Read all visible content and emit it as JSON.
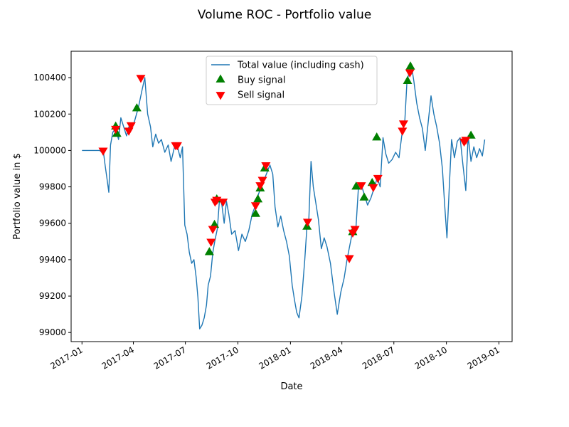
{
  "chart_data": {
    "type": "line",
    "title": "Volume ROC - Portfolio value",
    "xlabel": "Date",
    "ylabel": "Portfolio value in $",
    "xlim": [
      "2016-12-13",
      "2019-01-24"
    ],
    "ylim": [
      98950,
      100545
    ],
    "x_ticks": [
      "2017-01",
      "2017-04",
      "2017-07",
      "2017-10",
      "2018-01",
      "2018-04",
      "2018-07",
      "2018-10",
      "2019-01"
    ],
    "y_ticks": [
      99000,
      99200,
      99400,
      99600,
      99800,
      100000,
      100200,
      100400
    ],
    "grid": false,
    "legend_position": "top-center",
    "series": [
      {
        "name": "Total value (including cash)",
        "kind": "line",
        "color": "#1f77b4",
        "points": [
          [
            "2017-01-01",
            100000
          ],
          [
            "2017-02-01",
            100000
          ],
          [
            "2017-02-08",
            99980
          ],
          [
            "2017-02-10",
            99930
          ],
          [
            "2017-02-14",
            99840
          ],
          [
            "2017-02-17",
            99770
          ],
          [
            "2017-02-20",
            100030
          ],
          [
            "2017-02-24",
            100100
          ],
          [
            "2017-03-01",
            100120
          ],
          [
            "2017-03-06",
            100060
          ],
          [
            "2017-03-10",
            100180
          ],
          [
            "2017-03-16",
            100120
          ],
          [
            "2017-03-20",
            100080
          ],
          [
            "2017-03-24",
            100130
          ],
          [
            "2017-03-28",
            100110
          ],
          [
            "2017-04-03",
            100160
          ],
          [
            "2017-04-10",
            100240
          ],
          [
            "2017-04-16",
            100330
          ],
          [
            "2017-04-21",
            100400
          ],
          [
            "2017-04-26",
            100200
          ],
          [
            "2017-05-01",
            100130
          ],
          [
            "2017-05-05",
            100020
          ],
          [
            "2017-05-10",
            100090
          ],
          [
            "2017-05-15",
            100040
          ],
          [
            "2017-05-20",
            100060
          ],
          [
            "2017-05-26",
            99990
          ],
          [
            "2017-06-01",
            100030
          ],
          [
            "2017-06-06",
            99940
          ],
          [
            "2017-06-12",
            100020
          ],
          [
            "2017-06-18",
            100010
          ],
          [
            "2017-06-22",
            99960
          ],
          [
            "2017-06-26",
            100020
          ],
          [
            "2017-06-30",
            99590
          ],
          [
            "2017-07-04",
            99540
          ],
          [
            "2017-07-08",
            99440
          ],
          [
            "2017-07-12",
            99380
          ],
          [
            "2017-07-16",
            99400
          ],
          [
            "2017-07-20",
            99300
          ],
          [
            "2017-07-23",
            99190
          ],
          [
            "2017-07-26",
            99020
          ],
          [
            "2017-07-30",
            99040
          ],
          [
            "2017-08-03",
            99080
          ],
          [
            "2017-08-07",
            99150
          ],
          [
            "2017-08-10",
            99260
          ],
          [
            "2017-08-14",
            99310
          ],
          [
            "2017-08-18",
            99440
          ],
          [
            "2017-08-22",
            99510
          ],
          [
            "2017-08-26",
            99570
          ],
          [
            "2017-08-30",
            99740
          ],
          [
            "2017-09-03",
            99700
          ],
          [
            "2017-09-07",
            99600
          ],
          [
            "2017-09-11",
            99720
          ],
          [
            "2017-09-15",
            99650
          ],
          [
            "2017-09-20",
            99540
          ],
          [
            "2017-09-26",
            99560
          ],
          [
            "2017-10-02",
            99450
          ],
          [
            "2017-10-08",
            99540
          ],
          [
            "2017-10-14",
            99500
          ],
          [
            "2017-10-20",
            99560
          ],
          [
            "2017-10-26",
            99650
          ],
          [
            "2017-11-01",
            99700
          ],
          [
            "2017-11-06",
            99760
          ],
          [
            "2017-11-11",
            99800
          ],
          [
            "2017-11-16",
            99840
          ],
          [
            "2017-11-21",
            99880
          ],
          [
            "2017-11-26",
            99920
          ],
          [
            "2017-12-01",
            99870
          ],
          [
            "2017-12-05",
            99690
          ],
          [
            "2017-12-10",
            99580
          ],
          [
            "2017-12-15",
            99640
          ],
          [
            "2017-12-20",
            99560
          ],
          [
            "2017-12-25",
            99500
          ],
          [
            "2017-12-30",
            99420
          ],
          [
            "2018-01-04",
            99260
          ],
          [
            "2018-01-08",
            99180
          ],
          [
            "2018-01-12",
            99110
          ],
          [
            "2018-01-16",
            99080
          ],
          [
            "2018-01-21",
            99200
          ],
          [
            "2018-01-26",
            99400
          ],
          [
            "2018-01-30",
            99590
          ],
          [
            "2018-02-02",
            99610
          ],
          [
            "2018-02-06",
            99940
          ],
          [
            "2018-02-10",
            99800
          ],
          [
            "2018-02-14",
            99720
          ],
          [
            "2018-02-19",
            99620
          ],
          [
            "2018-02-24",
            99460
          ],
          [
            "2018-03-01",
            99520
          ],
          [
            "2018-03-06",
            99470
          ],
          [
            "2018-03-12",
            99380
          ],
          [
            "2018-03-18",
            99230
          ],
          [
            "2018-03-24",
            99100
          ],
          [
            "2018-03-30",
            99220
          ],
          [
            "2018-04-05",
            99300
          ],
          [
            "2018-04-10",
            99400
          ],
          [
            "2018-04-15",
            99480
          ],
          [
            "2018-04-20",
            99560
          ],
          [
            "2018-04-25",
            99540
          ],
          [
            "2018-04-30",
            99800
          ],
          [
            "2018-05-05",
            99810
          ],
          [
            "2018-05-10",
            99760
          ],
          [
            "2018-05-16",
            99700
          ],
          [
            "2018-05-22",
            99740
          ],
          [
            "2018-05-28",
            99800
          ],
          [
            "2018-06-02",
            99850
          ],
          [
            "2018-06-07",
            99800
          ],
          [
            "2018-06-12",
            100070
          ],
          [
            "2018-06-17",
            99980
          ],
          [
            "2018-06-22",
            99930
          ],
          [
            "2018-06-28",
            99950
          ],
          [
            "2018-07-04",
            99990
          ],
          [
            "2018-07-10",
            99960
          ],
          [
            "2018-07-16",
            100110
          ],
          [
            "2018-07-20",
            100150
          ],
          [
            "2018-07-24",
            100380
          ],
          [
            "2018-07-28",
            100430
          ],
          [
            "2018-08-01",
            100460
          ],
          [
            "2018-08-05",
            100380
          ],
          [
            "2018-08-10",
            100260
          ],
          [
            "2018-08-15",
            100180
          ],
          [
            "2018-08-20",
            100120
          ],
          [
            "2018-08-25",
            100000
          ],
          [
            "2018-08-30",
            100150
          ],
          [
            "2018-09-04",
            100300
          ],
          [
            "2018-09-09",
            100200
          ],
          [
            "2018-09-14",
            100130
          ],
          [
            "2018-09-19",
            100040
          ],
          [
            "2018-09-24",
            99900
          ],
          [
            "2018-09-28",
            99700
          ],
          [
            "2018-10-02",
            99520
          ],
          [
            "2018-10-06",
            99800
          ],
          [
            "2018-10-10",
            100060
          ],
          [
            "2018-10-15",
            99960
          ],
          [
            "2018-10-20",
            100050
          ],
          [
            "2018-10-25",
            100070
          ],
          [
            "2018-10-30",
            99920
          ],
          [
            "2018-11-04",
            99780
          ],
          [
            "2018-11-08",
            100080
          ],
          [
            "2018-11-13",
            99940
          ],
          [
            "2018-11-18",
            100020
          ],
          [
            "2018-11-23",
            99960
          ],
          [
            "2018-11-28",
            100010
          ],
          [
            "2018-12-03",
            99970
          ],
          [
            "2018-12-07",
            100060
          ]
        ]
      },
      {
        "name": "Buy signal",
        "kind": "marker",
        "marker": "triangle-up",
        "color": "#008000",
        "points": [
          [
            "2017-03-01",
            100130
          ],
          [
            "2017-03-03",
            100090
          ],
          [
            "2017-04-07",
            100230
          ],
          [
            "2017-08-12",
            99440
          ],
          [
            "2017-08-21",
            99590
          ],
          [
            "2017-08-25",
            99730
          ],
          [
            "2017-11-01",
            99650
          ],
          [
            "2017-11-05",
            99730
          ],
          [
            "2017-11-09",
            99790
          ],
          [
            "2017-11-17",
            99900
          ],
          [
            "2018-01-30",
            99580
          ],
          [
            "2018-04-20",
            99550
          ],
          [
            "2018-04-26",
            99800
          ],
          [
            "2018-05-10",
            99740
          ],
          [
            "2018-05-24",
            99820
          ],
          [
            "2018-06-01",
            100070
          ],
          [
            "2018-07-25",
            100380
          ],
          [
            "2018-07-30",
            100460
          ],
          [
            "2018-11-13",
            100080
          ]
        ]
      },
      {
        "name": "Sell signal",
        "kind": "marker",
        "marker": "triangle-down",
        "color": "#ff0000",
        "points": [
          [
            "2017-02-07",
            100000
          ],
          [
            "2017-03-01",
            100120
          ],
          [
            "2017-03-24",
            100110
          ],
          [
            "2017-03-28",
            100140
          ],
          [
            "2017-04-14",
            100400
          ],
          [
            "2017-06-14",
            100030
          ],
          [
            "2017-06-17",
            100030
          ],
          [
            "2017-08-15",
            99500
          ],
          [
            "2017-08-18",
            99570
          ],
          [
            "2017-08-22",
            99720
          ],
          [
            "2017-08-25",
            99730
          ],
          [
            "2017-09-05",
            99720
          ],
          [
            "2017-11-01",
            99700
          ],
          [
            "2017-11-09",
            99810
          ],
          [
            "2017-11-13",
            99840
          ],
          [
            "2017-11-19",
            99920
          ],
          [
            "2018-01-31",
            99610
          ],
          [
            "2018-04-14",
            99410
          ],
          [
            "2018-04-20",
            99550
          ],
          [
            "2018-04-24",
            99570
          ],
          [
            "2018-05-05",
            99810
          ],
          [
            "2018-05-26",
            99800
          ],
          [
            "2018-06-03",
            99850
          ],
          [
            "2018-07-16",
            100110
          ],
          [
            "2018-07-18",
            100150
          ],
          [
            "2018-07-29",
            100430
          ],
          [
            "2018-11-01",
            100050
          ],
          [
            "2018-11-04",
            100060
          ]
        ]
      }
    ]
  }
}
